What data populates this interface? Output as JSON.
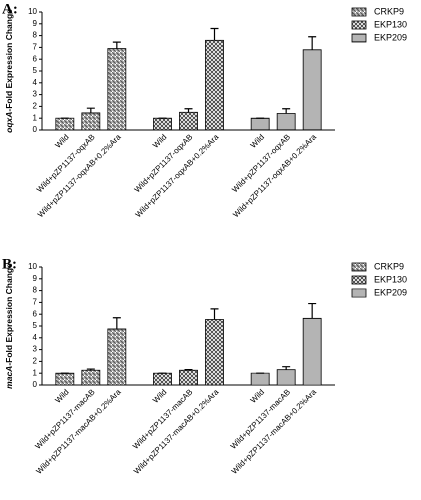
{
  "chart_data": [
    {
      "type": "bar",
      "title": "A:",
      "ylabel_gene": "oqxA",
      "ylabel": "-Fold Expression Change",
      "categories": [
        "Wild",
        "Wild+pZP1137-oqxAB",
        "Wild+pZP1137-oqxAB+0.2%Ara"
      ],
      "series": [
        {
          "name": "CRKP9",
          "color": "#555555",
          "values": [
            1,
            1.45,
            6.9
          ],
          "errors": [
            0,
            0.4,
            0.55
          ]
        },
        {
          "name": "EKP130",
          "color": "#333333",
          "values": [
            1,
            1.5,
            7.6
          ],
          "errors": [
            0,
            0.3,
            1.0
          ]
        },
        {
          "name": "EKP209",
          "color": "#444444",
          "values": [
            1,
            1.4,
            6.8
          ],
          "errors": [
            0,
            0.4,
            1.1
          ]
        }
      ],
      "ylim": [
        0,
        10
      ],
      "yticks": [
        0,
        1,
        2,
        3,
        4,
        5,
        6,
        7,
        8,
        9,
        10
      ],
      "legend": "right"
    },
    {
      "type": "bar",
      "title": "B:",
      "ylabel_gene": "macA",
      "ylabel": "-Fold Expression Change",
      "categories": [
        "Wild",
        "Wild+pZP1137-macAB",
        "Wild+pZP1137-macAB+0.2%Ara"
      ],
      "series": [
        {
          "name": "CRKP9",
          "color": "#555555",
          "values": [
            1,
            1.25,
            4.75
          ],
          "errors": [
            0,
            0.1,
            0.95
          ]
        },
        {
          "name": "EKP130",
          "color": "#333333",
          "values": [
            1,
            1.25,
            5.55
          ],
          "errors": [
            0,
            0.05,
            0.9
          ]
        },
        {
          "name": "EKP209",
          "color": "#444444",
          "values": [
            1,
            1.3,
            5.65
          ],
          "errors": [
            0,
            0.25,
            1.25
          ]
        }
      ],
      "ylim": [
        0,
        10
      ],
      "yticks": [
        0,
        1,
        2,
        3,
        4,
        5,
        6,
        7,
        8,
        9,
        10
      ],
      "legend": "right"
    }
  ]
}
